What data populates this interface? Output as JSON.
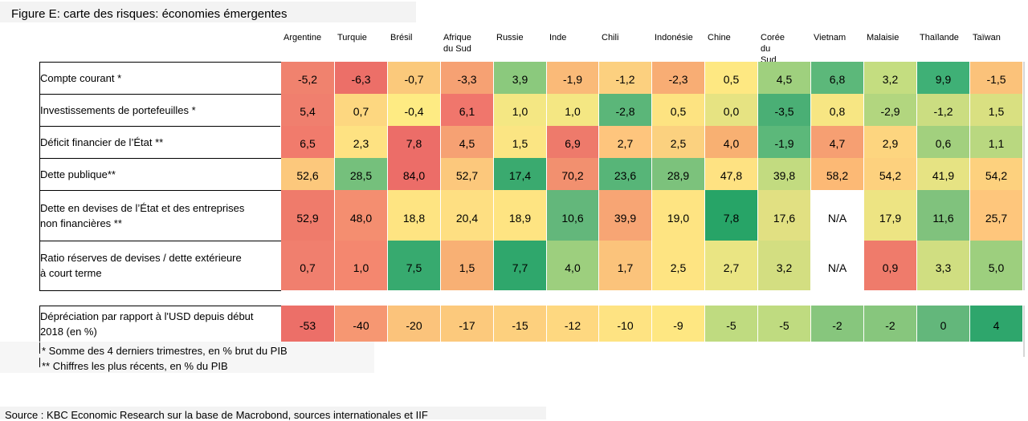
{
  "chart_data": {
    "type": "heatmap",
    "title": "Figure E: carte des risques: économies émergentes",
    "columns": [
      [
        "Argentine"
      ],
      [
        "Turquie"
      ],
      [
        "Brésil"
      ],
      [
        "Afrique",
        "du Sud"
      ],
      [
        "Russie"
      ],
      [
        "Inde"
      ],
      [
        "Chili"
      ],
      [
        "Indonésie"
      ],
      [
        "Chine"
      ],
      [
        "Corée",
        "du Sud"
      ],
      [
        "Vietnam"
      ],
      [
        "Malaisie"
      ],
      [
        "Thaïlande"
      ],
      [
        "Taïwan"
      ]
    ],
    "rows": [
      {
        "label": [
          "Compte courant *"
        ],
        "values": [
          "-5,2",
          "-6,3",
          "-0,7",
          "-3,3",
          "3,9",
          "-1,9",
          "-1,2",
          "-2,3",
          "0,5",
          "4,5",
          "6,8",
          "3,2",
          "9,9",
          "-1,5"
        ]
      },
      {
        "label": [
          "Investissements de portefeuilles *"
        ],
        "values": [
          "5,4",
          "0,7",
          "-0,4",
          "6,1",
          "1,0",
          "1,0",
          "-2,8",
          "0,5",
          "0,0",
          "-3,5",
          "0,8",
          "-2,9",
          "-1,2",
          "1,5"
        ]
      },
      {
        "label": [
          "Déficit financier de l’État **"
        ],
        "values": [
          "6,5",
          "2,3",
          "7,8",
          "4,5",
          "1,5",
          "6,9",
          "2,7",
          "2,5",
          "4,0",
          "-1,9",
          "4,7",
          "2,9",
          "0,6",
          "1,1"
        ]
      },
      {
        "label": [
          "Dette publique**"
        ],
        "values": [
          "52,6",
          "28,5",
          "84,0",
          "52,7",
          "17,4",
          "70,2",
          "23,6",
          "28,9",
          "47,8",
          "39,8",
          "58,2",
          "54,2",
          "41,9",
          "54,2"
        ]
      },
      {
        "label": [
          "Dette en devises de l’État et des entreprises",
          "non financières **"
        ],
        "values": [
          "52,9",
          "48,0",
          "18,8",
          "20,4",
          "18,9",
          "10,6",
          "39,9",
          "19,0",
          "7,8",
          "17,6",
          "N/A",
          "17,9",
          "11,6",
          "25,7"
        ]
      },
      {
        "label": [
          "Ratio réserves de devises / dette extérieure",
          "à court terme"
        ],
        "values": [
          "0,7",
          "1,0",
          "7,5",
          "1,5",
          "7,7",
          "4,0",
          "1,7",
          "2,5",
          "2,7",
          "3,2",
          "N/A",
          "0,9",
          "3,3",
          "5,0"
        ]
      },
      {
        "label": [
          "Dépréciation par rapport à l'USD depuis début",
          "2018 (en %)"
        ],
        "values": [
          "-53",
          "-40",
          "-20",
          "-17",
          "-15",
          "-12",
          "-10",
          "-9",
          "-5",
          "-5",
          "-2",
          "-2",
          "0",
          "4"
        ]
      }
    ],
    "colors": [
      [
        "#f0826e",
        "#ec6f68",
        "#fbc97b",
        "#f6a173",
        "#8bc97d",
        "#faba78",
        "#fcd07f",
        "#f8ad74",
        "#fee882",
        "#9fd07e",
        "#5cb87a",
        "#c4dd80",
        "#3fb076",
        "#fbc27a"
      ],
      [
        "#f07f6e",
        "#fdd780",
        "#feeb83",
        "#f0766c",
        "#f4e783",
        "#f4e783",
        "#5bb679",
        "#fde381",
        "#e6e382",
        "#4aaf75",
        "#f7e683",
        "#b2d67f",
        "#cbdd81",
        "#d9e081"
      ],
      [
        "#f17b6c",
        "#fee282",
        "#ec6d68",
        "#f6a173",
        "#fbe583",
        "#ee7a6b",
        "#fec57d",
        "#fbd17f",
        "#f8b072",
        "#5cb87a",
        "#f69f72",
        "#fdd57f",
        "#a2d07e",
        "#b9d880"
      ],
      [
        "#fcc87c",
        "#75c07c",
        "#ec6d68",
        "#fcc87c",
        "#3aaa6f",
        "#f2906f",
        "#57b578",
        "#7cc27c",
        "#fee282",
        "#c2db80",
        "#fcb975",
        "#fdd17e",
        "#e6e383",
        "#fdd17e"
      ],
      [
        "#ef7b6b",
        "#f48e70",
        "#fee482",
        "#fedf82",
        "#fee482",
        "#63b77b",
        "#f7a574",
        "#fee482",
        "#27a467",
        "#e1e082",
        "#ffffff",
        "#ede483",
        "#80c27d",
        "#fec67c"
      ],
      [
        "#f07f6e",
        "#f4876f",
        "#37aa6f",
        "#f8b074",
        "#2fa76c",
        "#9dcf7e",
        "#fbc37b",
        "#fee482",
        "#eae583",
        "#d3de81",
        "#ffffff",
        "#ef7b6b",
        "#d0de81",
        "#9dcf7e"
      ],
      [
        "#ec6f68",
        "#f69772",
        "#fbc37b",
        "#fcc97c",
        "#fdd07e",
        "#fed880",
        "#fee382",
        "#fee782",
        "#bfdb80",
        "#bfdb80",
        "#87c67d",
        "#87c67d",
        "#63b77b",
        "#2ea66c"
      ]
    ],
    "footnotes": [
      "* Somme des 4 derniers trimestres, en % brut du PIB",
      "** Chiffres les plus récents, en % du PIB"
    ],
    "source": "Source : KBC Economic Research sur la base de Macrobond, sources internationales et IIF"
  }
}
